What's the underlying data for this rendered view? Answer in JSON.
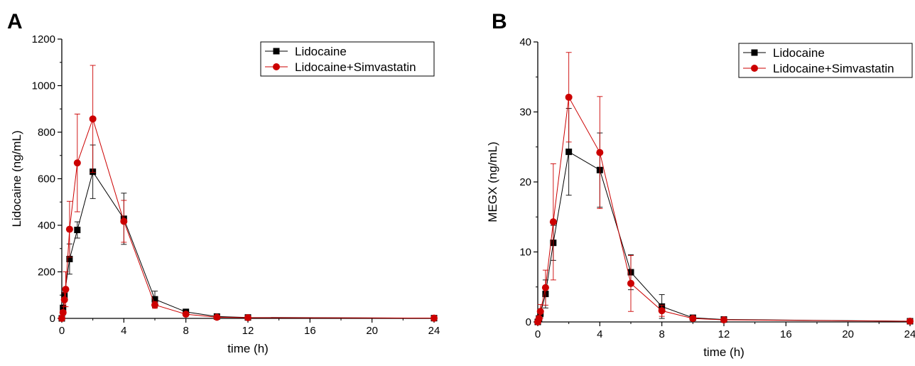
{
  "chart_data": [
    {
      "panel": "A",
      "type": "line",
      "title": "",
      "xlabel": "time (h)",
      "ylabel": "Lidocaine (ng/mL)",
      "xlim": [
        0,
        24
      ],
      "ylim": [
        0,
        1200
      ],
      "xticks": [
        0,
        4,
        8,
        12,
        16,
        20,
        24
      ],
      "yticks": [
        0,
        200,
        400,
        600,
        800,
        1000,
        1200
      ],
      "grid": false,
      "legend_position": "top-right",
      "series": [
        {
          "name": "Lidocaine",
          "color": "#000000",
          "marker": "square",
          "points": [
            {
              "x": 0,
              "y": 0,
              "err": 0
            },
            {
              "x": 0.08,
              "y": 45,
              "err": 10
            },
            {
              "x": 0.17,
              "y": 100,
              "err": 25
            },
            {
              "x": 0.5,
              "y": 255,
              "err": 65
            },
            {
              "x": 1,
              "y": 380,
              "err": 35
            },
            {
              "x": 2,
              "y": 630,
              "err": 115
            },
            {
              "x": 4,
              "y": 428,
              "err": 110
            },
            {
              "x": 6,
              "y": 82,
              "err": 35
            },
            {
              "x": 8,
              "y": 28,
              "err": 10
            },
            {
              "x": 10,
              "y": 8,
              "err": 3
            },
            {
              "x": 12,
              "y": 4,
              "err": 2
            },
            {
              "x": 24,
              "y": 1,
              "err": 0
            }
          ]
        },
        {
          "name": "Lidocaine+Simvastatin",
          "color": "#cc0000",
          "marker": "circle",
          "points": [
            {
              "x": 0,
              "y": 0,
              "err": 0
            },
            {
              "x": 0.08,
              "y": 25,
              "err": 10
            },
            {
              "x": 0.17,
              "y": 80,
              "err": 30
            },
            {
              "x": 0.25,
              "y": 125,
              "err": 75
            },
            {
              "x": 0.5,
              "y": 383,
              "err": 120
            },
            {
              "x": 1,
              "y": 668,
              "err": 210
            },
            {
              "x": 2,
              "y": 857,
              "err": 230
            },
            {
              "x": 4,
              "y": 417,
              "err": 90
            },
            {
              "x": 6,
              "y": 58,
              "err": 15
            },
            {
              "x": 8,
              "y": 18,
              "err": 8
            },
            {
              "x": 10,
              "y": 5,
              "err": 2
            },
            {
              "x": 12,
              "y": 3,
              "err": 1
            },
            {
              "x": 24,
              "y": 1,
              "err": 0
            }
          ]
        }
      ]
    },
    {
      "panel": "B",
      "type": "line",
      "title": "",
      "xlabel": "time (h)",
      "ylabel": "MEGX (ng/mL)",
      "xlim": [
        0,
        24
      ],
      "ylim": [
        0,
        40
      ],
      "xticks": [
        0,
        4,
        8,
        12,
        16,
        20,
        24
      ],
      "yticks": [
        0,
        10,
        20,
        30,
        40
      ],
      "grid": false,
      "legend_position": "top-right",
      "series": [
        {
          "name": "Lidocaine",
          "color": "#000000",
          "marker": "square",
          "points": [
            {
              "x": 0,
              "y": 0,
              "err": 0
            },
            {
              "x": 0.08,
              "y": 0.5,
              "err": 0.3
            },
            {
              "x": 0.17,
              "y": 1.2,
              "err": 0.5
            },
            {
              "x": 0.5,
              "y": 4.0,
              "err": 2.0
            },
            {
              "x": 1,
              "y": 11.3,
              "err": 2.5
            },
            {
              "x": 2,
              "y": 24.3,
              "err": 6.2
            },
            {
              "x": 4,
              "y": 21.7,
              "err": 5.3
            },
            {
              "x": 6,
              "y": 7.1,
              "err": 2.5
            },
            {
              "x": 8,
              "y": 2.2,
              "err": 1.7
            },
            {
              "x": 10,
              "y": 0.6,
              "err": 0.3
            },
            {
              "x": 12,
              "y": 0.35,
              "err": 0.1
            },
            {
              "x": 24,
              "y": 0.1,
              "err": 0
            }
          ]
        },
        {
          "name": "Lidocaine+Simvastatin",
          "color": "#cc0000",
          "marker": "circle",
          "points": [
            {
              "x": 0,
              "y": 0,
              "err": 0
            },
            {
              "x": 0.08,
              "y": 0.5,
              "err": 0.3
            },
            {
              "x": 0.17,
              "y": 1.5,
              "err": 1.0
            },
            {
              "x": 0.5,
              "y": 4.9,
              "err": 2.5
            },
            {
              "x": 1,
              "y": 14.3,
              "err": 8.3
            },
            {
              "x": 2,
              "y": 32.1,
              "err": 6.4
            },
            {
              "x": 4,
              "y": 24.2,
              "err": 8.0
            },
            {
              "x": 6,
              "y": 5.5,
              "err": 4.0
            },
            {
              "x": 8,
              "y": 1.6,
              "err": 0.8
            },
            {
              "x": 10,
              "y": 0.5,
              "err": 0.2
            },
            {
              "x": 12,
              "y": 0.3,
              "err": 0.1
            },
            {
              "x": 24,
              "y": 0.1,
              "err": 0
            }
          ]
        }
      ]
    }
  ]
}
